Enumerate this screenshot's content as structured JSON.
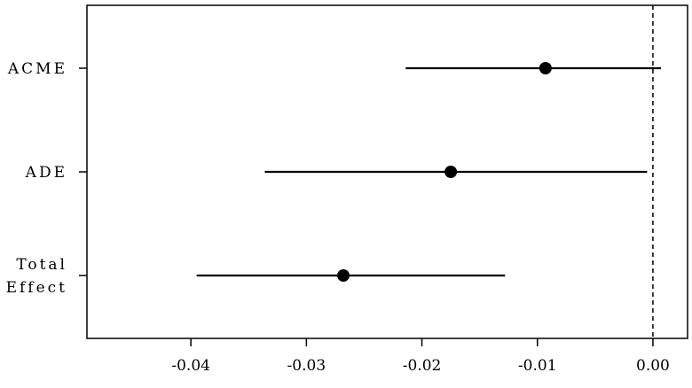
{
  "chart_data": {
    "type": "scatter",
    "subtype": "forest-plot",
    "title": "",
    "xlabel": "",
    "ylabel": "",
    "xlim": [
      -0.049,
      0.003
    ],
    "x_ticks": [
      -0.04,
      -0.03,
      -0.02,
      -0.01,
      0.0
    ],
    "x_tick_labels": [
      "-0.04",
      "-0.03",
      "-0.02",
      "-0.01",
      "0.00"
    ],
    "reference_line": {
      "x": 0.0,
      "style": "dashed"
    },
    "grid": false,
    "legend": "none",
    "categories": [
      {
        "label_lines": [
          "ACME"
        ],
        "estimate": -0.0093,
        "ci_lower": -0.0214,
        "ci_upper": 0.0007
      },
      {
        "label_lines": [
          "ADE"
        ],
        "estimate": -0.0175,
        "ci_lower": -0.0336,
        "ci_upper": -0.0005
      },
      {
        "label_lines": [
          "Total",
          "Effect"
        ],
        "estimate": -0.0268,
        "ci_lower": -0.0395,
        "ci_upper": -0.0128
      }
    ],
    "colors": {
      "marker": "#000000",
      "line": "#000000"
    }
  }
}
